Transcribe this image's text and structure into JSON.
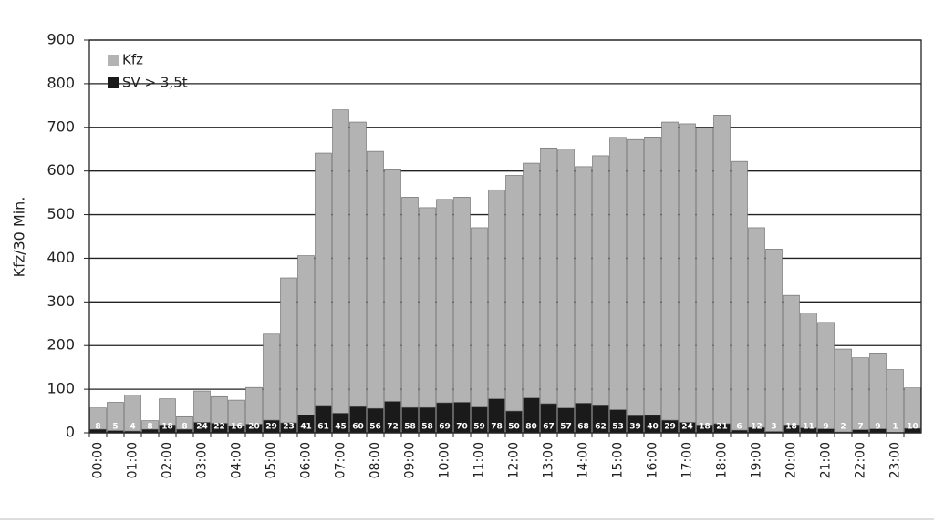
{
  "chart_data": {
    "type": "bar",
    "bar_layout": "overlap",
    "y_label": "Kfz/30 Min.",
    "categories": [
      "00:00",
      null,
      "01:00",
      null,
      "02:00",
      null,
      "03:00",
      null,
      "04:00",
      null,
      "05:00",
      null,
      "06:00",
      null,
      "07:00",
      null,
      "08:00",
      null,
      "09:00",
      null,
      "10:00",
      null,
      "11:00",
      null,
      "12:00",
      null,
      "13:00",
      null,
      "14:00",
      null,
      "15:00",
      null,
      "16:00",
      null,
      "17:00",
      null,
      "18:00",
      null,
      "19:00",
      null,
      "20:00",
      null,
      "21:00",
      null,
      "22:00",
      null,
      "23:00",
      null
    ],
    "series": [
      {
        "name": "Kfz",
        "color": "#b3b3b3",
        "values": [
          57,
          70,
          87,
          28,
          78,
          37,
          96,
          83,
          75,
          104,
          226,
          355,
          406,
          641,
          740,
          712,
          645,
          603,
          540,
          516,
          535,
          540,
          470,
          557,
          590,
          618,
          653,
          650,
          610,
          635,
          677,
          672,
          678,
          712,
          708,
          699,
          728,
          622,
          470,
          421,
          315,
          275,
          253,
          192,
          172,
          183,
          145,
          103
        ]
      },
      {
        "name": "SV > 3,5t",
        "color": "#1a1a1a",
        "show_values": true,
        "values": [
          8,
          5,
          4,
          8,
          18,
          8,
          24,
          22,
          16,
          20,
          29,
          23,
          41,
          61,
          45,
          60,
          56,
          72,
          58,
          58,
          69,
          70,
          59,
          78,
          50,
          80,
          67,
          57,
          68,
          62,
          53,
          39,
          40,
          29,
          24,
          18,
          21,
          6,
          12,
          3,
          18,
          11,
          9,
          2,
          7,
          9,
          1,
          10
        ]
      }
    ],
    "ylim": [
      0,
      900
    ],
    "yticks": [
      0,
      100,
      200,
      300,
      400,
      500,
      600,
      700,
      800,
      900
    ],
    "grid": true,
    "legend": "top-left"
  }
}
